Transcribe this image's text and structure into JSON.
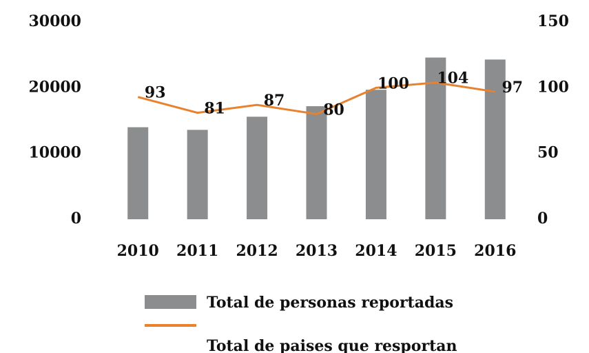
{
  "chart_data": {
    "type": "bar-line",
    "categories": [
      "2010",
      "2011",
      "2012",
      "2013",
      "2014",
      "2015",
      "2016"
    ],
    "series": [
      {
        "name": "Total de personas reportadas",
        "type": "bar",
        "color": "#8b8d8f",
        "values": [
          14000,
          13600,
          15600,
          17200,
          19700,
          24600,
          24300
        ]
      },
      {
        "name": "Total de paises que resportan",
        "type": "line",
        "axis": "y2",
        "color": "#e8822e",
        "values": [
          93,
          81,
          87,
          80,
          100,
          104,
          97
        ]
      }
    ],
    "ylim": [
      0,
      30000
    ],
    "yticks": [
      0,
      10000,
      20000,
      30000
    ],
    "y2lim": [
      0,
      150
    ],
    "y2ticks": [
      0,
      50,
      100,
      150
    ],
    "grid": false,
    "legend": "bottom"
  }
}
